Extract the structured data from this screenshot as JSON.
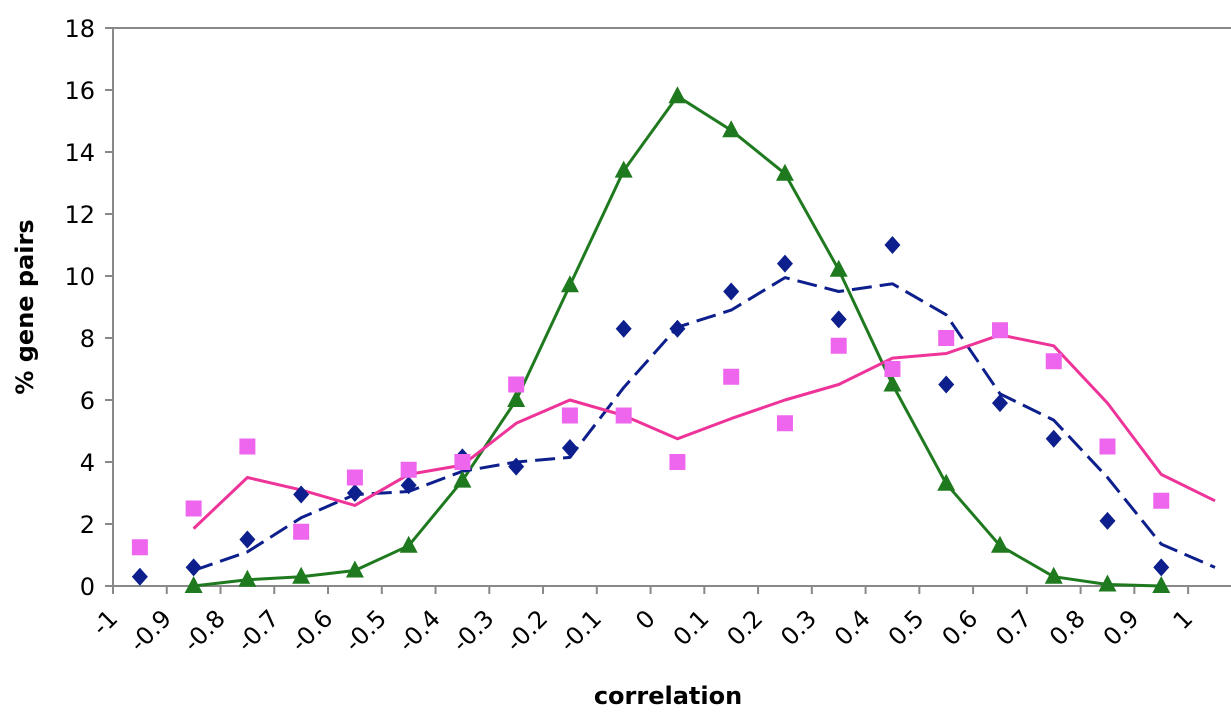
{
  "chart_data": {
    "type": "line",
    "title": "",
    "xlabel": "correlation",
    "ylabel": "% gene pairs",
    "xlim": [
      -1,
      1.05
    ],
    "ylim": [
      0,
      18
    ],
    "grid": false,
    "legend": "none",
    "x_tick_labels": [
      "-1",
      "-0.9",
      "-0.8",
      "-0.7",
      "-0.6",
      "-0.5",
      "-0.4",
      "-0.3",
      "-0.2",
      "-0.1",
      "0",
      "0.1",
      "0.2",
      "0.3",
      "0.4",
      "0.5",
      "0.6",
      "0.7",
      "0.8",
      "0.9",
      "1"
    ],
    "y_tick_labels": [
      "0",
      "2",
      "4",
      "6",
      "8",
      "10",
      "12",
      "14",
      "16",
      "18"
    ],
    "series": [
      {
        "color": "#1f7a1f",
        "marker": "triangle",
        "line": "solid",
        "points": [
          {
            "x": -0.85,
            "y": 0.0
          },
          {
            "x": -0.75,
            "y": 0.2
          },
          {
            "x": -0.65,
            "y": 0.3
          },
          {
            "x": -0.55,
            "y": 0.5
          },
          {
            "x": -0.45,
            "y": 1.3
          },
          {
            "x": -0.35,
            "y": 3.4
          },
          {
            "x": -0.25,
            "y": 6.0
          },
          {
            "x": -0.15,
            "y": 9.7
          },
          {
            "x": -0.05,
            "y": 13.4
          },
          {
            "x": 0.05,
            "y": 15.8
          },
          {
            "x": 0.15,
            "y": 14.7
          },
          {
            "x": 0.25,
            "y": 13.3
          },
          {
            "x": 0.35,
            "y": 10.2
          },
          {
            "x": 0.45,
            "y": 6.5
          },
          {
            "x": 0.55,
            "y": 3.3
          },
          {
            "x": 0.65,
            "y": 1.3
          },
          {
            "x": 0.75,
            "y": 0.3
          },
          {
            "x": 0.85,
            "y": 0.05
          },
          {
            "x": 0.95,
            "y": 0.0
          }
        ],
        "line_points": [
          {
            "x": -0.85,
            "y": 0.0
          },
          {
            "x": -0.75,
            "y": 0.2
          },
          {
            "x": -0.65,
            "y": 0.3
          },
          {
            "x": -0.55,
            "y": 0.5
          },
          {
            "x": -0.45,
            "y": 1.3
          },
          {
            "x": -0.35,
            "y": 3.4
          },
          {
            "x": -0.25,
            "y": 6.0
          },
          {
            "x": -0.15,
            "y": 9.7
          },
          {
            "x": -0.05,
            "y": 13.4
          },
          {
            "x": 0.05,
            "y": 15.8
          },
          {
            "x": 0.15,
            "y": 14.7
          },
          {
            "x": 0.25,
            "y": 13.3
          },
          {
            "x": 0.35,
            "y": 10.2
          },
          {
            "x": 0.45,
            "y": 6.5
          },
          {
            "x": 0.55,
            "y": 3.3
          },
          {
            "x": 0.65,
            "y": 1.3
          },
          {
            "x": 0.75,
            "y": 0.3
          },
          {
            "x": 0.85,
            "y": 0.05
          },
          {
            "x": 0.95,
            "y": 0.0
          }
        ]
      },
      {
        "color": "#0d1f8c",
        "marker": "diamond",
        "line": "dashed",
        "points": [
          {
            "x": -0.95,
            "y": 0.3
          },
          {
            "x": -0.85,
            "y": 0.6
          },
          {
            "x": -0.75,
            "y": 1.5
          },
          {
            "x": -0.65,
            "y": 2.95
          },
          {
            "x": -0.55,
            "y": 3.0
          },
          {
            "x": -0.45,
            "y": 3.25
          },
          {
            "x": -0.35,
            "y": 4.15
          },
          {
            "x": -0.25,
            "y": 3.85
          },
          {
            "x": -0.15,
            "y": 4.45
          },
          {
            "x": -0.05,
            "y": 8.3
          },
          {
            "x": 0.05,
            "y": 8.3
          },
          {
            "x": 0.15,
            "y": 9.5
          },
          {
            "x": 0.25,
            "y": 10.4
          },
          {
            "x": 0.35,
            "y": 8.6
          },
          {
            "x": 0.45,
            "y": 11.0
          },
          {
            "x": 0.55,
            "y": 6.5
          },
          {
            "x": 0.65,
            "y": 5.9
          },
          {
            "x": 0.75,
            "y": 4.75
          },
          {
            "x": 0.85,
            "y": 2.1
          },
          {
            "x": 0.95,
            "y": 0.6
          }
        ],
        "line_points": [
          {
            "x": -0.85,
            "y": 0.5
          },
          {
            "x": -0.75,
            "y": 1.1
          },
          {
            "x": -0.65,
            "y": 2.2
          },
          {
            "x": -0.55,
            "y": 2.95
          },
          {
            "x": -0.45,
            "y": 3.05
          },
          {
            "x": -0.35,
            "y": 3.7
          },
          {
            "x": -0.25,
            "y": 4.0
          },
          {
            "x": -0.15,
            "y": 4.15
          },
          {
            "x": -0.05,
            "y": 6.4
          },
          {
            "x": 0.05,
            "y": 8.35
          },
          {
            "x": 0.15,
            "y": 8.9
          },
          {
            "x": 0.25,
            "y": 9.95
          },
          {
            "x": 0.35,
            "y": 9.5
          },
          {
            "x": 0.45,
            "y": 9.75
          },
          {
            "x": 0.55,
            "y": 8.75
          },
          {
            "x": 0.65,
            "y": 6.2
          },
          {
            "x": 0.75,
            "y": 5.35
          },
          {
            "x": 0.85,
            "y": 3.5
          },
          {
            "x": 0.95,
            "y": 1.35
          },
          {
            "x": 1.05,
            "y": 0.6
          }
        ]
      },
      {
        "color": "#ee66ee",
        "line_color": "#ee3399",
        "marker": "square",
        "line": "solid",
        "points": [
          {
            "x": -0.95,
            "y": 1.25
          },
          {
            "x": -0.85,
            "y": 2.5
          },
          {
            "x": -0.75,
            "y": 4.5
          },
          {
            "x": -0.65,
            "y": 1.75
          },
          {
            "x": -0.55,
            "y": 3.5
          },
          {
            "x": -0.45,
            "y": 3.75
          },
          {
            "x": -0.35,
            "y": 4.0
          },
          {
            "x": -0.25,
            "y": 6.5
          },
          {
            "x": -0.15,
            "y": 5.5
          },
          {
            "x": -0.05,
            "y": 5.5
          },
          {
            "x": 0.05,
            "y": 4.0
          },
          {
            "x": 0.15,
            "y": 6.75
          },
          {
            "x": 0.25,
            "y": 5.25
          },
          {
            "x": 0.35,
            "y": 7.75
          },
          {
            "x": 0.45,
            "y": 7.0
          },
          {
            "x": 0.55,
            "y": 8.0
          },
          {
            "x": 0.65,
            "y": 8.25
          },
          {
            "x": 0.75,
            "y": 7.25
          },
          {
            "x": 0.85,
            "y": 4.5
          },
          {
            "x": 0.95,
            "y": 2.75
          }
        ],
        "line_points": [
          {
            "x": -0.85,
            "y": 1.85
          },
          {
            "x": -0.75,
            "y": 3.5
          },
          {
            "x": -0.65,
            "y": 3.1
          },
          {
            "x": -0.55,
            "y": 2.6
          },
          {
            "x": -0.45,
            "y": 3.6
          },
          {
            "x": -0.35,
            "y": 3.9
          },
          {
            "x": -0.25,
            "y": 5.25
          },
          {
            "x": -0.15,
            "y": 6.0
          },
          {
            "x": -0.05,
            "y": 5.5
          },
          {
            "x": 0.05,
            "y": 4.75
          },
          {
            "x": 0.15,
            "y": 5.4
          },
          {
            "x": 0.25,
            "y": 6.0
          },
          {
            "x": 0.35,
            "y": 6.5
          },
          {
            "x": 0.45,
            "y": 7.35
          },
          {
            "x": 0.55,
            "y": 7.5
          },
          {
            "x": 0.65,
            "y": 8.1
          },
          {
            "x": 0.75,
            "y": 7.75
          },
          {
            "x": 0.85,
            "y": 5.9
          },
          {
            "x": 0.95,
            "y": 3.6
          },
          {
            "x": 1.05,
            "y": 2.75
          }
        ]
      }
    ]
  }
}
